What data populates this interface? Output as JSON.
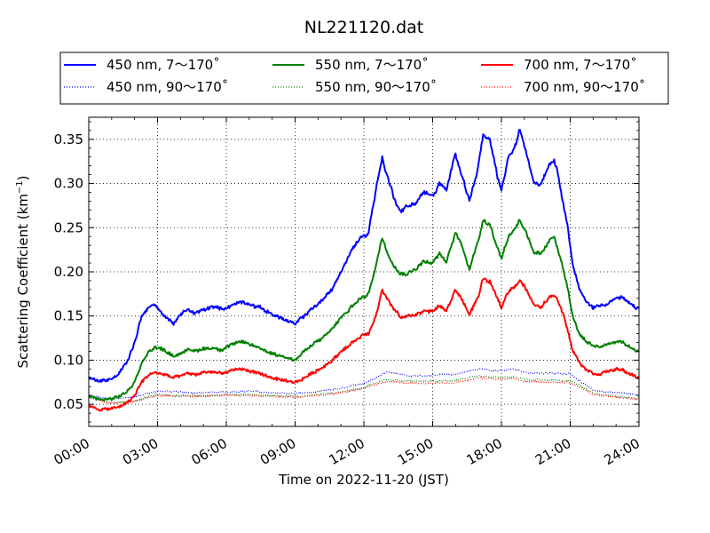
{
  "chart_data": {
    "type": "line",
    "title": "NL221120.dat",
    "xlabel": "Time on 2022-11-20 (JST)",
    "ylabel_main": "Scattering Coefficient (km",
    "ylabel_sup": "−1",
    "ylabel_close": ")",
    "x_unit": "hours",
    "xlim": [
      0,
      24
    ],
    "ylim": [
      0.025,
      0.375
    ],
    "grid": true,
    "legend_position": "top (outside plot, 3 columns)",
    "x_ticks": [
      {
        "value": 0,
        "label": "00:00"
      },
      {
        "value": 3,
        "label": "03:00"
      },
      {
        "value": 6,
        "label": "06:00"
      },
      {
        "value": 9,
        "label": "09:00"
      },
      {
        "value": 12,
        "label": "12:00"
      },
      {
        "value": 15,
        "label": "15:00"
      },
      {
        "value": 18,
        "label": "18:00"
      },
      {
        "value": 21,
        "label": "21:00"
      },
      {
        "value": 24,
        "label": "24:00"
      }
    ],
    "y_ticks": [
      {
        "value": 0.05,
        "label": "0.05"
      },
      {
        "value": 0.1,
        "label": "0.10"
      },
      {
        "value": 0.15,
        "label": "0.15"
      },
      {
        "value": 0.2,
        "label": "0.20"
      },
      {
        "value": 0.25,
        "label": "0.25"
      },
      {
        "value": 0.3,
        "label": "0.30"
      },
      {
        "value": 0.35,
        "label": "0.35"
      }
    ],
    "series": [
      {
        "name": "450 nm, 7～170˚",
        "color": "#0000ff",
        "style": "solid",
        "x": [
          0,
          0.5,
          1,
          1.3,
          1.7,
          2,
          2.3,
          2.6,
          2.9,
          3.1,
          3.4,
          3.7,
          4,
          4.3,
          4.6,
          5,
          5.4,
          5.8,
          6.2,
          6.6,
          7,
          7.4,
          7.8,
          8.2,
          8.6,
          9,
          9.4,
          9.8,
          10.2,
          10.6,
          11,
          11.3,
          11.6,
          11.9,
          12.2,
          12.5,
          12.8,
          13,
          13.3,
          13.6,
          14,
          14.3,
          14.6,
          15,
          15.3,
          15.6,
          16,
          16.3,
          16.6,
          17,
          17.2,
          17.5,
          17.8,
          18,
          18.3,
          18.6,
          18.8,
          19.1,
          19.4,
          19.7,
          20,
          20.3,
          20.6,
          20.9,
          21.1,
          21.4,
          21.7,
          22,
          22.3,
          22.6,
          23,
          23.3,
          23.6,
          24
        ],
        "y": [
          0.08,
          0.076,
          0.079,
          0.085,
          0.1,
          0.12,
          0.15,
          0.16,
          0.162,
          0.155,
          0.148,
          0.142,
          0.15,
          0.158,
          0.152,
          0.157,
          0.16,
          0.158,
          0.162,
          0.166,
          0.165,
          0.16,
          0.155,
          0.15,
          0.145,
          0.14,
          0.15,
          0.16,
          0.168,
          0.18,
          0.2,
          0.215,
          0.23,
          0.24,
          0.245,
          0.29,
          0.33,
          0.31,
          0.285,
          0.27,
          0.275,
          0.28,
          0.29,
          0.285,
          0.3,
          0.29,
          0.335,
          0.31,
          0.28,
          0.32,
          0.355,
          0.345,
          0.31,
          0.29,
          0.33,
          0.34,
          0.36,
          0.335,
          0.305,
          0.3,
          0.32,
          0.33,
          0.295,
          0.25,
          0.21,
          0.18,
          0.165,
          0.16,
          0.162,
          0.165,
          0.17,
          0.17,
          0.163,
          0.158
        ]
      },
      {
        "name": "550 nm, 7～170˚",
        "color": "#008000",
        "style": "solid",
        "x": [
          0,
          0.5,
          1,
          1.3,
          1.7,
          2,
          2.3,
          2.6,
          2.9,
          3.1,
          3.4,
          3.7,
          4,
          4.3,
          4.6,
          5,
          5.4,
          5.8,
          6.2,
          6.6,
          7,
          7.4,
          7.8,
          8.2,
          8.6,
          9,
          9.4,
          9.8,
          10.2,
          10.6,
          11,
          11.3,
          11.6,
          11.9,
          12.2,
          12.5,
          12.8,
          13,
          13.3,
          13.6,
          14,
          14.3,
          14.6,
          15,
          15.3,
          15.6,
          16,
          16.3,
          16.6,
          17,
          17.2,
          17.5,
          17.8,
          18,
          18.3,
          18.6,
          18.8,
          19.1,
          19.4,
          19.7,
          20,
          20.3,
          20.6,
          20.9,
          21.1,
          21.4,
          21.7,
          22,
          22.3,
          22.6,
          23,
          23.3,
          23.6,
          24
        ],
        "y": [
          0.06,
          0.055,
          0.056,
          0.058,
          0.065,
          0.075,
          0.095,
          0.11,
          0.115,
          0.113,
          0.11,
          0.105,
          0.108,
          0.112,
          0.11,
          0.113,
          0.114,
          0.112,
          0.118,
          0.12,
          0.118,
          0.114,
          0.11,
          0.106,
          0.104,
          0.1,
          0.11,
          0.118,
          0.125,
          0.135,
          0.148,
          0.155,
          0.165,
          0.17,
          0.175,
          0.205,
          0.24,
          0.225,
          0.21,
          0.198,
          0.2,
          0.205,
          0.212,
          0.21,
          0.22,
          0.21,
          0.245,
          0.228,
          0.205,
          0.235,
          0.26,
          0.255,
          0.23,
          0.215,
          0.24,
          0.25,
          0.26,
          0.245,
          0.22,
          0.218,
          0.23,
          0.24,
          0.215,
          0.18,
          0.15,
          0.13,
          0.12,
          0.115,
          0.115,
          0.118,
          0.122,
          0.12,
          0.115,
          0.11
        ]
      },
      {
        "name": "700 nm, 7～170˚",
        "color": "#ff0000",
        "style": "solid",
        "x": [
          0,
          0.5,
          1,
          1.3,
          1.7,
          2,
          2.3,
          2.6,
          2.9,
          3.1,
          3.4,
          3.7,
          4,
          4.3,
          4.6,
          5,
          5.4,
          5.8,
          6.2,
          6.6,
          7,
          7.4,
          7.8,
          8.2,
          8.6,
          9,
          9.4,
          9.8,
          10.2,
          10.6,
          11,
          11.3,
          11.6,
          11.9,
          12.2,
          12.5,
          12.8,
          13,
          13.3,
          13.6,
          14,
          14.3,
          14.6,
          15,
          15.3,
          15.6,
          16,
          16.3,
          16.6,
          17,
          17.2,
          17.5,
          17.8,
          18,
          18.3,
          18.6,
          18.8,
          19.1,
          19.4,
          19.7,
          20,
          20.3,
          20.6,
          20.9,
          21.1,
          21.4,
          21.7,
          22,
          22.3,
          22.6,
          23,
          23.3,
          23.6,
          24
        ],
        "y": [
          0.048,
          0.044,
          0.045,
          0.047,
          0.052,
          0.06,
          0.075,
          0.083,
          0.086,
          0.085,
          0.083,
          0.08,
          0.082,
          0.085,
          0.083,
          0.086,
          0.087,
          0.085,
          0.088,
          0.09,
          0.088,
          0.085,
          0.082,
          0.078,
          0.076,
          0.074,
          0.08,
          0.086,
          0.092,
          0.1,
          0.11,
          0.115,
          0.122,
          0.128,
          0.13,
          0.15,
          0.18,
          0.17,
          0.158,
          0.148,
          0.15,
          0.152,
          0.156,
          0.155,
          0.162,
          0.155,
          0.18,
          0.168,
          0.152,
          0.172,
          0.192,
          0.188,
          0.17,
          0.16,
          0.178,
          0.185,
          0.192,
          0.18,
          0.162,
          0.16,
          0.168,
          0.175,
          0.16,
          0.135,
          0.112,
          0.098,
          0.09,
          0.085,
          0.085,
          0.087,
          0.09,
          0.088,
          0.084,
          0.08
        ]
      },
      {
        "name": "450 nm, 90～170˚",
        "color": "#0000ff",
        "style": "dotted",
        "x": [
          0,
          1,
          2,
          2.5,
          3,
          4,
          5,
          6,
          7,
          8,
          9,
          10,
          11,
          12,
          12.5,
          13,
          14,
          15,
          16,
          17,
          18,
          18.5,
          19,
          20,
          21,
          21.5,
          22,
          23,
          24
        ],
        "y": [
          0.06,
          0.056,
          0.058,
          0.062,
          0.065,
          0.064,
          0.063,
          0.064,
          0.065,
          0.063,
          0.062,
          0.064,
          0.068,
          0.074,
          0.08,
          0.087,
          0.082,
          0.083,
          0.084,
          0.09,
          0.088,
          0.09,
          0.086,
          0.085,
          0.085,
          0.075,
          0.066,
          0.063,
          0.061
        ]
      },
      {
        "name": "550 nm, 90～170˚",
        "color": "#008000",
        "style": "dotted",
        "x": [
          0,
          1,
          2,
          2.5,
          3,
          4,
          5,
          6,
          7,
          8,
          9,
          10,
          11,
          12,
          12.5,
          13,
          14,
          15,
          16,
          17,
          18,
          18.5,
          19,
          20,
          21,
          21.5,
          22,
          23,
          24
        ],
        "y": [
          0.058,
          0.052,
          0.054,
          0.058,
          0.061,
          0.06,
          0.06,
          0.061,
          0.061,
          0.06,
          0.059,
          0.061,
          0.064,
          0.069,
          0.074,
          0.078,
          0.076,
          0.076,
          0.077,
          0.082,
          0.08,
          0.081,
          0.078,
          0.077,
          0.077,
          0.07,
          0.062,
          0.059,
          0.057
        ]
      },
      {
        "name": "700 nm, 90～170˚",
        "color": "#ff0000",
        "style": "dotted",
        "x": [
          0,
          1,
          2,
          2.5,
          3,
          4,
          5,
          6,
          7,
          8,
          9,
          10,
          11,
          12,
          12.5,
          13,
          14,
          15,
          16,
          17,
          18,
          18.5,
          19,
          20,
          21,
          21.5,
          22,
          23,
          24
        ],
        "y": [
          0.057,
          0.051,
          0.053,
          0.057,
          0.06,
          0.059,
          0.059,
          0.06,
          0.06,
          0.059,
          0.058,
          0.06,
          0.063,
          0.068,
          0.072,
          0.076,
          0.074,
          0.074,
          0.075,
          0.08,
          0.078,
          0.079,
          0.076,
          0.075,
          0.075,
          0.068,
          0.061,
          0.058,
          0.056
        ]
      }
    ],
    "legend": [
      {
        "label": "450 nm, 7～170˚",
        "color": "#0000ff",
        "style": "solid"
      },
      {
        "label": "550 nm, 7～170˚",
        "color": "#008000",
        "style": "solid"
      },
      {
        "label": "700 nm, 7～170˚",
        "color": "#ff0000",
        "style": "solid"
      },
      {
        "label": "450 nm, 90～170˚",
        "color": "#0000ff",
        "style": "dotted"
      },
      {
        "label": "550 nm, 90～170˚",
        "color": "#008000",
        "style": "dotted"
      },
      {
        "label": "700 nm, 90～170˚",
        "color": "#ff0000",
        "style": "dotted"
      }
    ]
  }
}
